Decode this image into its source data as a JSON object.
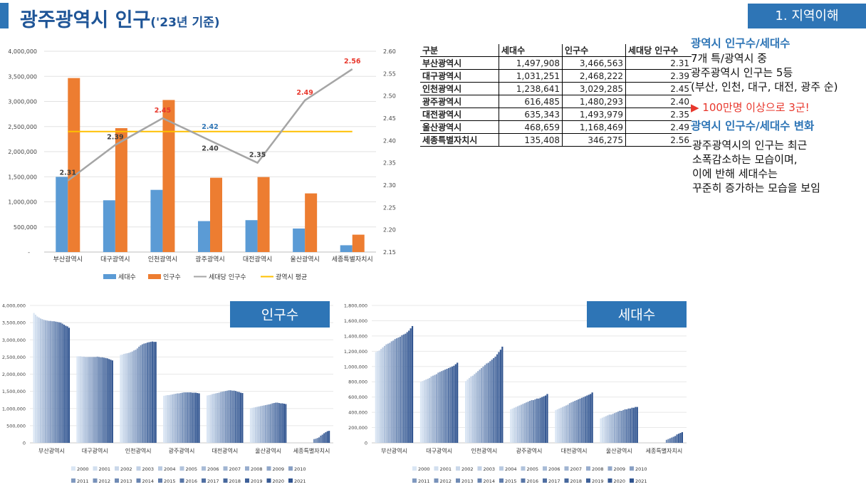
{
  "header": {
    "title_main": "광주광역시 인구",
    "title_sub": "('23년 기준)",
    "section": "1. 지역이해"
  },
  "colors": {
    "households": "#5b9bd5",
    "population": "#ed7d31",
    "per_household": "#a5a5a5",
    "metro_avg": "#ffc000",
    "accent": "#2e75b6",
    "highlight": "#e8372c"
  },
  "table": {
    "headers": [
      "구분",
      "세대수",
      "인구수",
      "세대당 인구수"
    ],
    "rows": [
      [
        "부산광역시",
        "1,497,908",
        "3,466,563",
        "2.31"
      ],
      [
        "대구광역시",
        "1,031,251",
        "2,468,222",
        "2.39"
      ],
      [
        "인천광역시",
        "1,238,641",
        "3,029,285",
        "2.45"
      ],
      [
        "광주광역시",
        "616,485",
        "1,480,293",
        "2.40"
      ],
      [
        "대전광역시",
        "635,343",
        "1,493,979",
        "2.35"
      ],
      [
        "울산광역시",
        "468,659",
        "1,168,469",
        "2.49"
      ],
      [
        "세종특별자치시",
        "135,408",
        "346,275",
        "2.56"
      ]
    ]
  },
  "side": {
    "heading1": "광역시 인구수/세대수",
    "lines1": [
      "7개 특/광역시 중",
      "광주광역시 인구는 5등",
      "(부산, 인천, 대구, 대전, 광주 순)"
    ],
    "highlight": "▶ 100만명 이상으로 3군!",
    "heading2": "광역시 인구수/세대수 변화",
    "lines2": [
      "광주광역시의 인구는 최근",
      "소폭감소하는 모습이며,",
      "이에 반해 세대수는",
      "꾸준히 증가하는 모습을 보임"
    ]
  },
  "chart_data": [
    {
      "type": "bar",
      "categories": [
        "부산광역시",
        "대구광역시",
        "인천광역시",
        "광주광역시",
        "대전광역시",
        "울산광역시",
        "세종특별자치시"
      ],
      "series": [
        {
          "name": "세대수",
          "values": [
            1497908,
            1031251,
            1238641,
            616485,
            635343,
            468659,
            135408
          ]
        },
        {
          "name": "인구수",
          "values": [
            3466563,
            2468222,
            3029285,
            1480293,
            1493979,
            1168469,
            346275
          ]
        },
        {
          "name": "세대당 인구수",
          "kind": "line",
          "axis": "right",
          "values": [
            2.31,
            2.39,
            2.45,
            2.4,
            2.35,
            2.49,
            2.56
          ],
          "labels": [
            "2.31",
            "2.39",
            "2.45",
            "2.40",
            "2.35",
            "2.49",
            "2.56"
          ]
        },
        {
          "name": "광역시 평균",
          "kind": "line",
          "axis": "right",
          "values": [
            2.42,
            2.42,
            2.42,
            2.42,
            2.42,
            2.42,
            2.42
          ],
          "labels": [
            "",
            "",
            "",
            "2.42",
            "",
            "",
            ""
          ]
        }
      ],
      "red_labels": [
        2,
        5,
        6
      ],
      "ylim": [
        0,
        4000000
      ],
      "yticks": [
        "-",
        "500,000",
        "1,000,000",
        "1,500,000",
        "2,000,000",
        "2,500,000",
        "3,000,000",
        "3,500,000",
        "4,000,000"
      ],
      "y2lim": [
        2.15,
        2.6
      ],
      "y2ticks": [
        "2.15",
        "2.20",
        "2.25",
        "2.30",
        "2.35",
        "2.40",
        "2.45",
        "2.50",
        "2.55",
        "2.60"
      ],
      "legend": "bottom"
    },
    {
      "type": "bar",
      "title": "인구수",
      "categories": [
        "부산광역시",
        "대구광역시",
        "인천광역시",
        "광주광역시",
        "대전광역시",
        "울산광역시",
        "세종특별자치시"
      ],
      "years": [
        "2000",
        "2001",
        "2002",
        "2003",
        "2004",
        "2005",
        "2006",
        "2007",
        "2008",
        "2009",
        "2010",
        "2011",
        "2012",
        "2013",
        "2014",
        "2015",
        "2016",
        "2017",
        "2018",
        "2019",
        "2020",
        "2021"
      ],
      "series_by_category": [
        [
          3780000,
          3730000,
          3680000,
          3650000,
          3620000,
          3600000,
          3580000,
          3570000,
          3560000,
          3550000,
          3550000,
          3540000,
          3540000,
          3530000,
          3520000,
          3510000,
          3500000,
          3470000,
          3440000,
          3410000,
          3390000,
          3350000
        ],
        [
          2520000,
          2520000,
          2520000,
          2510000,
          2510000,
          2500000,
          2500000,
          2500000,
          2500000,
          2500000,
          2500000,
          2500000,
          2510000,
          2500000,
          2490000,
          2490000,
          2480000,
          2470000,
          2460000,
          2440000,
          2420000,
          2400000
        ],
        [
          2560000,
          2570000,
          2590000,
          2600000,
          2610000,
          2620000,
          2640000,
          2660000,
          2690000,
          2710000,
          2750000,
          2800000,
          2840000,
          2870000,
          2890000,
          2900000,
          2920000,
          2930000,
          2940000,
          2950000,
          2940000,
          2940000
        ],
        [
          1370000,
          1380000,
          1390000,
          1390000,
          1400000,
          1410000,
          1420000,
          1430000,
          1440000,
          1440000,
          1450000,
          1460000,
          1470000,
          1470000,
          1470000,
          1470000,
          1470000,
          1460000,
          1460000,
          1460000,
          1450000,
          1440000
        ],
        [
          1380000,
          1390000,
          1400000,
          1420000,
          1430000,
          1440000,
          1450000,
          1460000,
          1480000,
          1490000,
          1500000,
          1510000,
          1520000,
          1530000,
          1530000,
          1520000,
          1520000,
          1510000,
          1490000,
          1480000,
          1460000,
          1450000
        ],
        [
          1010000,
          1020000,
          1030000,
          1040000,
          1050000,
          1060000,
          1070000,
          1080000,
          1090000,
          1100000,
          1110000,
          1120000,
          1130000,
          1150000,
          1160000,
          1170000,
          1170000,
          1160000,
          1150000,
          1150000,
          1140000,
          1130000
        ],
        [
          0,
          0,
          0,
          0,
          0,
          0,
          0,
          0,
          0,
          0,
          0,
          0,
          110000,
          120000,
          140000,
          160000,
          210000,
          240000,
          280000,
          310000,
          340000,
          350000
        ]
      ],
      "ylim": [
        0,
        4000000
      ],
      "yticks": [
        "0",
        "500,000",
        "1,000,000",
        "1,500,000",
        "2,000,000",
        "2,500,000",
        "3,000,000",
        "3,500,000",
        "4,000,000"
      ],
      "legend": "bottom"
    },
    {
      "type": "bar",
      "title": "세대수",
      "categories": [
        "부산광역시",
        "대구광역시",
        "인천광역시",
        "광주광역시",
        "대전광역시",
        "울산광역시",
        "세종특별자치시"
      ],
      "years": [
        "2000",
        "2001",
        "2002",
        "2003",
        "2004",
        "2005",
        "2006",
        "2007",
        "2008",
        "2009",
        "2010",
        "2011",
        "2012",
        "2013",
        "2014",
        "2015",
        "2016",
        "2017",
        "2018",
        "2019",
        "2020",
        "2021"
      ],
      "series_by_category": [
        [
          1190000,
          1200000,
          1210000,
          1230000,
          1250000,
          1270000,
          1290000,
          1300000,
          1310000,
          1330000,
          1340000,
          1360000,
          1370000,
          1380000,
          1390000,
          1410000,
          1420000,
          1430000,
          1450000,
          1470000,
          1500000,
          1530000
        ],
        [
          800000,
          810000,
          820000,
          830000,
          840000,
          850000,
          870000,
          880000,
          890000,
          900000,
          920000,
          930000,
          940000,
          950000,
          960000,
          970000,
          980000,
          990000,
          1000000,
          1010000,
          1030000,
          1050000
        ],
        [
          810000,
          830000,
          850000,
          870000,
          880000,
          900000,
          920000,
          940000,
          960000,
          980000,
          1000000,
          1020000,
          1040000,
          1050000,
          1070000,
          1090000,
          1110000,
          1130000,
          1160000,
          1190000,
          1220000,
          1260000
        ],
        [
          440000,
          450000,
          460000,
          470000,
          480000,
          490000,
          500000,
          510000,
          520000,
          530000,
          540000,
          550000,
          560000,
          560000,
          570000,
          580000,
          580000,
          590000,
          600000,
          610000,
          620000,
          640000
        ],
        [
          430000,
          440000,
          450000,
          460000,
          470000,
          480000,
          490000,
          500000,
          520000,
          530000,
          540000,
          550000,
          560000,
          570000,
          580000,
          590000,
          600000,
          610000,
          620000,
          630000,
          640000,
          660000
        ],
        [
          320000,
          330000,
          340000,
          350000,
          360000,
          370000,
          370000,
          380000,
          390000,
          400000,
          410000,
          420000,
          420000,
          430000,
          440000,
          440000,
          450000,
          450000,
          460000,
          460000,
          470000,
          470000
        ],
        [
          0,
          0,
          0,
          0,
          0,
          0,
          0,
          0,
          0,
          0,
          0,
          0,
          40000,
          50000,
          60000,
          70000,
          80000,
          90000,
          110000,
          120000,
          130000,
          140000
        ]
      ],
      "ylim": [
        0,
        1800000
      ],
      "yticks": [
        "0",
        "200,000",
        "400,000",
        "600,000",
        "800,000",
        "1,000,000",
        "1,200,000",
        "1,400,000",
        "1,600,000",
        "1,800,000"
      ],
      "legend": "bottom"
    }
  ]
}
